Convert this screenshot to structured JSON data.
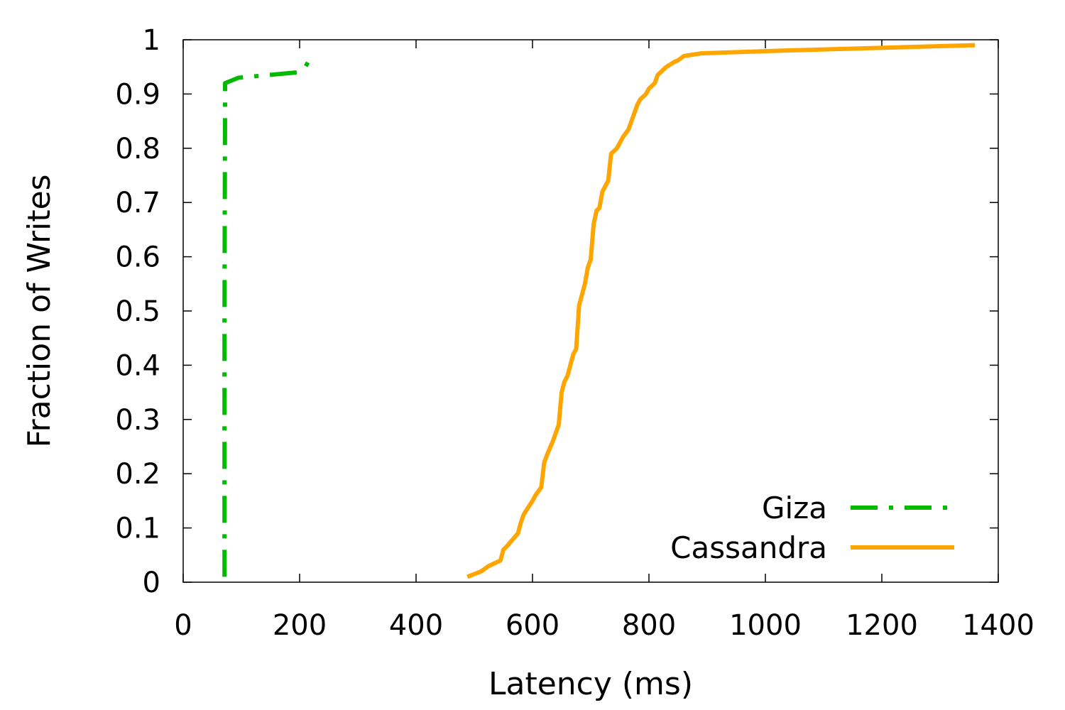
{
  "chart_data": {
    "type": "line",
    "title": "",
    "xlabel": "Latency (ms)",
    "ylabel": "Fraction of Writes",
    "xlim": [
      0,
      1400
    ],
    "ylim": [
      0,
      1
    ],
    "x_ticks": [
      0,
      200,
      400,
      600,
      800,
      1000,
      1200,
      1400
    ],
    "y_ticks": [
      0,
      0.1,
      0.2,
      0.3,
      0.4,
      0.5,
      0.6,
      0.7,
      0.8,
      0.9,
      1
    ],
    "x_tick_labels": [
      "0",
      "200",
      "400",
      "600",
      "800",
      "1000",
      "1200",
      "1400"
    ],
    "y_tick_labels": [
      "0",
      "0.1",
      "0.2",
      "0.3",
      "0.4",
      "0.5",
      "0.6",
      "0.7",
      "0.8",
      "0.9",
      "1"
    ],
    "grid": false,
    "legend_position": "bottom-right",
    "series": [
      {
        "name": "Giza",
        "color": "#00bb00",
        "style": "dash-dot",
        "x": [
          71,
          71,
          72,
          72,
          95,
          198,
          210,
          220
        ],
        "y": [
          0.01,
          0.5,
          0.89,
          0.92,
          0.93,
          0.94,
          0.95,
          0.97
        ]
      },
      {
        "name": "Cassandra",
        "color": "#ffa500",
        "style": "solid",
        "x": [
          488,
          512,
          525,
          545,
          550,
          555,
          575,
          580,
          585,
          600,
          605,
          615,
          620,
          625,
          635,
          640,
          645,
          650,
          655,
          660,
          665,
          670,
          675,
          680,
          685,
          690,
          695,
          700,
          705,
          710,
          715,
          720,
          730,
          735,
          745,
          750,
          755,
          765,
          770,
          780,
          785,
          790,
          795,
          800,
          810,
          815,
          820,
          825,
          830,
          845,
          850,
          860,
          890,
          1030,
          1360
        ],
        "y": [
          0.01,
          0.02,
          0.03,
          0.04,
          0.06,
          0.065,
          0.09,
          0.11,
          0.125,
          0.15,
          0.16,
          0.175,
          0.22,
          0.235,
          0.26,
          0.275,
          0.29,
          0.35,
          0.37,
          0.38,
          0.4,
          0.42,
          0.43,
          0.51,
          0.53,
          0.55,
          0.58,
          0.595,
          0.66,
          0.685,
          0.69,
          0.72,
          0.74,
          0.79,
          0.8,
          0.81,
          0.82,
          0.835,
          0.85,
          0.88,
          0.89,
          0.895,
          0.9,
          0.91,
          0.92,
          0.935,
          0.94,
          0.945,
          0.95,
          0.96,
          0.962,
          0.97,
          0.975,
          0.98,
          0.99
        ]
      }
    ]
  }
}
